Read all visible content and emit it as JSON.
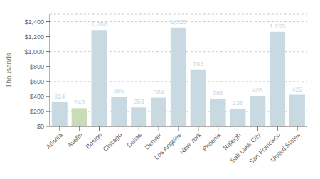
{
  "chart_data": {
    "type": "bar",
    "categories": [
      "Atlanta",
      "Austin",
      "Boston",
      "Chicago",
      "Dallas",
      "Denver",
      "Los Angeles",
      "New York",
      "Phoenix",
      "Raleigh",
      "Salt Lake City",
      "San Francisco",
      "United States"
    ],
    "values": [
      324,
      243,
      1288,
      395,
      253,
      384,
      1323,
      763,
      368,
      238,
      408,
      1265,
      422
    ],
    "value_labels": [
      "324",
      "243",
      "1,288",
      "395",
      "253",
      "384",
      "1,323",
      "763",
      "368",
      "238",
      "408",
      "1,265",
      "422"
    ],
    "data_labels": true,
    "colors": [
      "#c8d9e2",
      "#c8ddb5",
      "#c8d9e2",
      "#c8d9e2",
      "#c8d9e2",
      "#c8d9e2",
      "#c8d9e2",
      "#c8d9e2",
      "#c8d9e2",
      "#c8d9e2",
      "#c8d9e2",
      "#c8d9e2",
      "#c8d9e2"
    ],
    "ylabel": "Thousands",
    "ylim": [
      0,
      1500
    ],
    "yticks": [
      {
        "value": 0,
        "label": "$0"
      },
      {
        "value": 200,
        "label": "$200"
      },
      {
        "value": 400,
        "label": "$400"
      },
      {
        "value": 600,
        "label": "$600"
      },
      {
        "value": 800,
        "label": "$800"
      },
      {
        "value": 1000,
        "label": "$1,000"
      },
      {
        "value": 1200,
        "label": "$1,200"
      },
      {
        "value": 1400,
        "label": "$1,400"
      }
    ],
    "grid": true
  }
}
